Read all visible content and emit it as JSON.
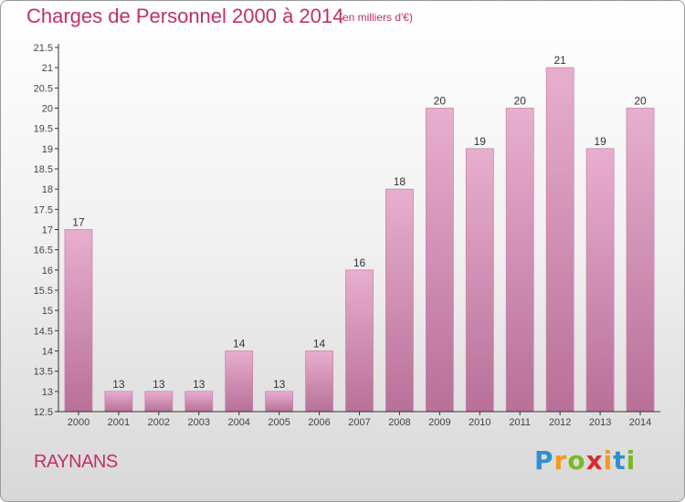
{
  "header": {
    "title": "Charges de Personnel 2000 à 2014",
    "unit": "(en milliers d'€)"
  },
  "footer": {
    "commune": "RAYNANS",
    "logo_letters": [
      {
        "ch": "P",
        "color": "#2e8fd1"
      },
      {
        "ch": "r",
        "color": "#f29a1a"
      },
      {
        "ch": "o",
        "color": "#7ab827"
      },
      {
        "ch": "x",
        "color": "#e0262e"
      },
      {
        "ch": "i",
        "color": "#f29a1a"
      },
      {
        "ch": "t",
        "color": "#2e8fd1"
      },
      {
        "ch": "i",
        "color": "#7ab827"
      }
    ]
  },
  "colors": {
    "bar_light": "#e8aed0",
    "bar_dark": "#b87098",
    "bar_edge": "#c985ad",
    "axis": "#333333",
    "title": "#c0306b"
  },
  "chart_data": {
    "type": "bar",
    "categories": [
      "2000",
      "2001",
      "2002",
      "2003",
      "2004",
      "2005",
      "2006",
      "2007",
      "2008",
      "2009",
      "2010",
      "2011",
      "2012",
      "2013",
      "2014"
    ],
    "values": [
      17,
      13,
      13,
      13,
      14,
      13,
      14,
      16,
      18,
      20,
      19,
      20,
      21,
      19,
      20
    ],
    "ylim": [
      12.5,
      21.5
    ],
    "yticks": [
      "12.5",
      "13",
      "13.5",
      "14",
      "14.5",
      "15",
      "15.5",
      "16",
      "16.5",
      "17",
      "17.5",
      "18",
      "18.5",
      "19",
      "19.5",
      "20",
      "20.5",
      "21",
      "21.5"
    ],
    "grid": false
  }
}
